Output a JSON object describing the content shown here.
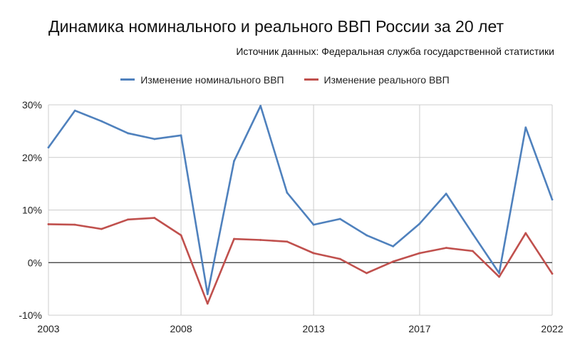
{
  "colors": {
    "nominal": "#4f81bd",
    "real": "#c0504d",
    "grid": "#cccccc",
    "zero": "#333333"
  },
  "chart_data": {
    "type": "line",
    "title": "Динамика номинального и реального ВВП России за 20 лет",
    "subtitle": "Источник данных: Федеральная служба государственной статистики",
    "legend_position": "top",
    "grid": true,
    "x": [
      2003,
      2004,
      2005,
      2006,
      2007,
      2008,
      2009,
      2010,
      2011,
      2012,
      2013,
      2014,
      2015,
      2016,
      2017,
      2018,
      2019,
      2020,
      2021,
      2022
    ],
    "x_ticks": [
      "2003",
      "2008",
      "2013",
      "2017",
      "2022"
    ],
    "y_ticks": [
      "-10%",
      "0%",
      "10%",
      "20%",
      "30%"
    ],
    "ylim": [
      -10,
      30
    ],
    "series": [
      {
        "name": "Изменение номинального ВВП",
        "color_key": "nominal",
        "values": [
          21.9,
          28.9,
          26.9,
          24.6,
          23.5,
          24.2,
          -6.0,
          19.3,
          29.8,
          13.3,
          7.2,
          8.3,
          5.2,
          3.1,
          7.4,
          13.1,
          5.5,
          -2.0,
          25.7,
          12.0
        ]
      },
      {
        "name": "Изменение реального ВВП",
        "color_key": "real",
        "values": [
          7.3,
          7.2,
          6.4,
          8.2,
          8.5,
          5.2,
          -7.8,
          4.5,
          4.3,
          4.0,
          1.8,
          0.7,
          -2.0,
          0.2,
          1.8,
          2.8,
          2.2,
          -2.7,
          5.6,
          -2.1
        ]
      }
    ]
  }
}
